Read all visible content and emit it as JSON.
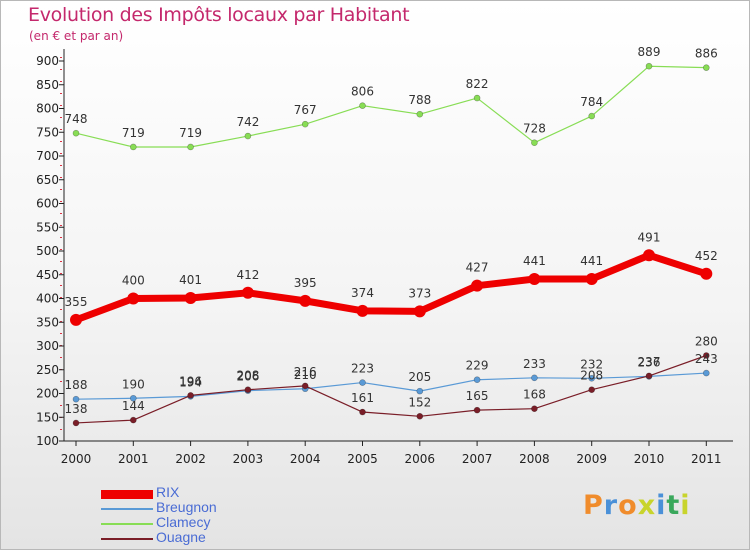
{
  "title": "Evolution des Impôts locaux par Habitant",
  "subtitle": "(en € et par an)",
  "brand": {
    "text": "Proxiti",
    "colors": [
      "#f08c2c",
      "#4a90d8",
      "#f08c2c",
      "#c8d42c",
      "#4a90d8",
      "#3aa85c",
      "#c8d42c"
    ]
  },
  "chart_data": {
    "type": "line",
    "title": "Evolution des Impôts locaux par Habitant",
    "subtitle": "(en € et par an)",
    "x": [
      "2000",
      "2001",
      "2002",
      "2003",
      "2004",
      "2005",
      "2006",
      "2007",
      "2008",
      "2009",
      "2010",
      "2011"
    ],
    "ylim": [
      100,
      900
    ],
    "yticks": [
      "100",
      "150",
      "200",
      "250",
      "300",
      "350",
      "400",
      "450",
      "500",
      "550",
      "600",
      "650",
      "700",
      "750",
      "800",
      "850",
      "900"
    ],
    "grid": false,
    "legend_position": "bottom-left",
    "series": [
      {
        "name": "RIX",
        "color": "#ee0000",
        "values": [
          355,
          400,
          401,
          412,
          395,
          374,
          373,
          427,
          441,
          441,
          491,
          452
        ],
        "labels": [
          "355",
          "400",
          "401",
          "412",
          "395",
          "374",
          "373",
          "427",
          "441",
          "441",
          "491",
          "452"
        ]
      },
      {
        "name": "Breugnon",
        "color": "#5a9ad6",
        "values": [
          188,
          190,
          194,
          206,
          210,
          223,
          205,
          229,
          233,
          232,
          236,
          243
        ],
        "labels": [
          "188",
          "190",
          "194",
          "206",
          "210",
          "223",
          "205",
          "229",
          "233",
          "232",
          "236",
          "243"
        ]
      },
      {
        "name": "Clamecy",
        "color": "#88dd55",
        "values": [
          748,
          719,
          719,
          742,
          767,
          806,
          788,
          822,
          728,
          784,
          889,
          886
        ],
        "labels": [
          "748",
          "719",
          "719",
          "742",
          "767",
          "806",
          "788",
          "822",
          "728",
          "784",
          "889",
          "886"
        ]
      },
      {
        "name": "Ouagne",
        "color": "#7a1e28",
        "values": [
          138,
          144,
          196,
          208,
          216,
          161,
          152,
          165,
          168,
          208,
          237,
          280
        ],
        "labels": [
          "138",
          "144",
          "196",
          "208",
          "216",
          "161",
          "152",
          "165",
          "168",
          "208",
          "237",
          "280"
        ]
      }
    ]
  }
}
